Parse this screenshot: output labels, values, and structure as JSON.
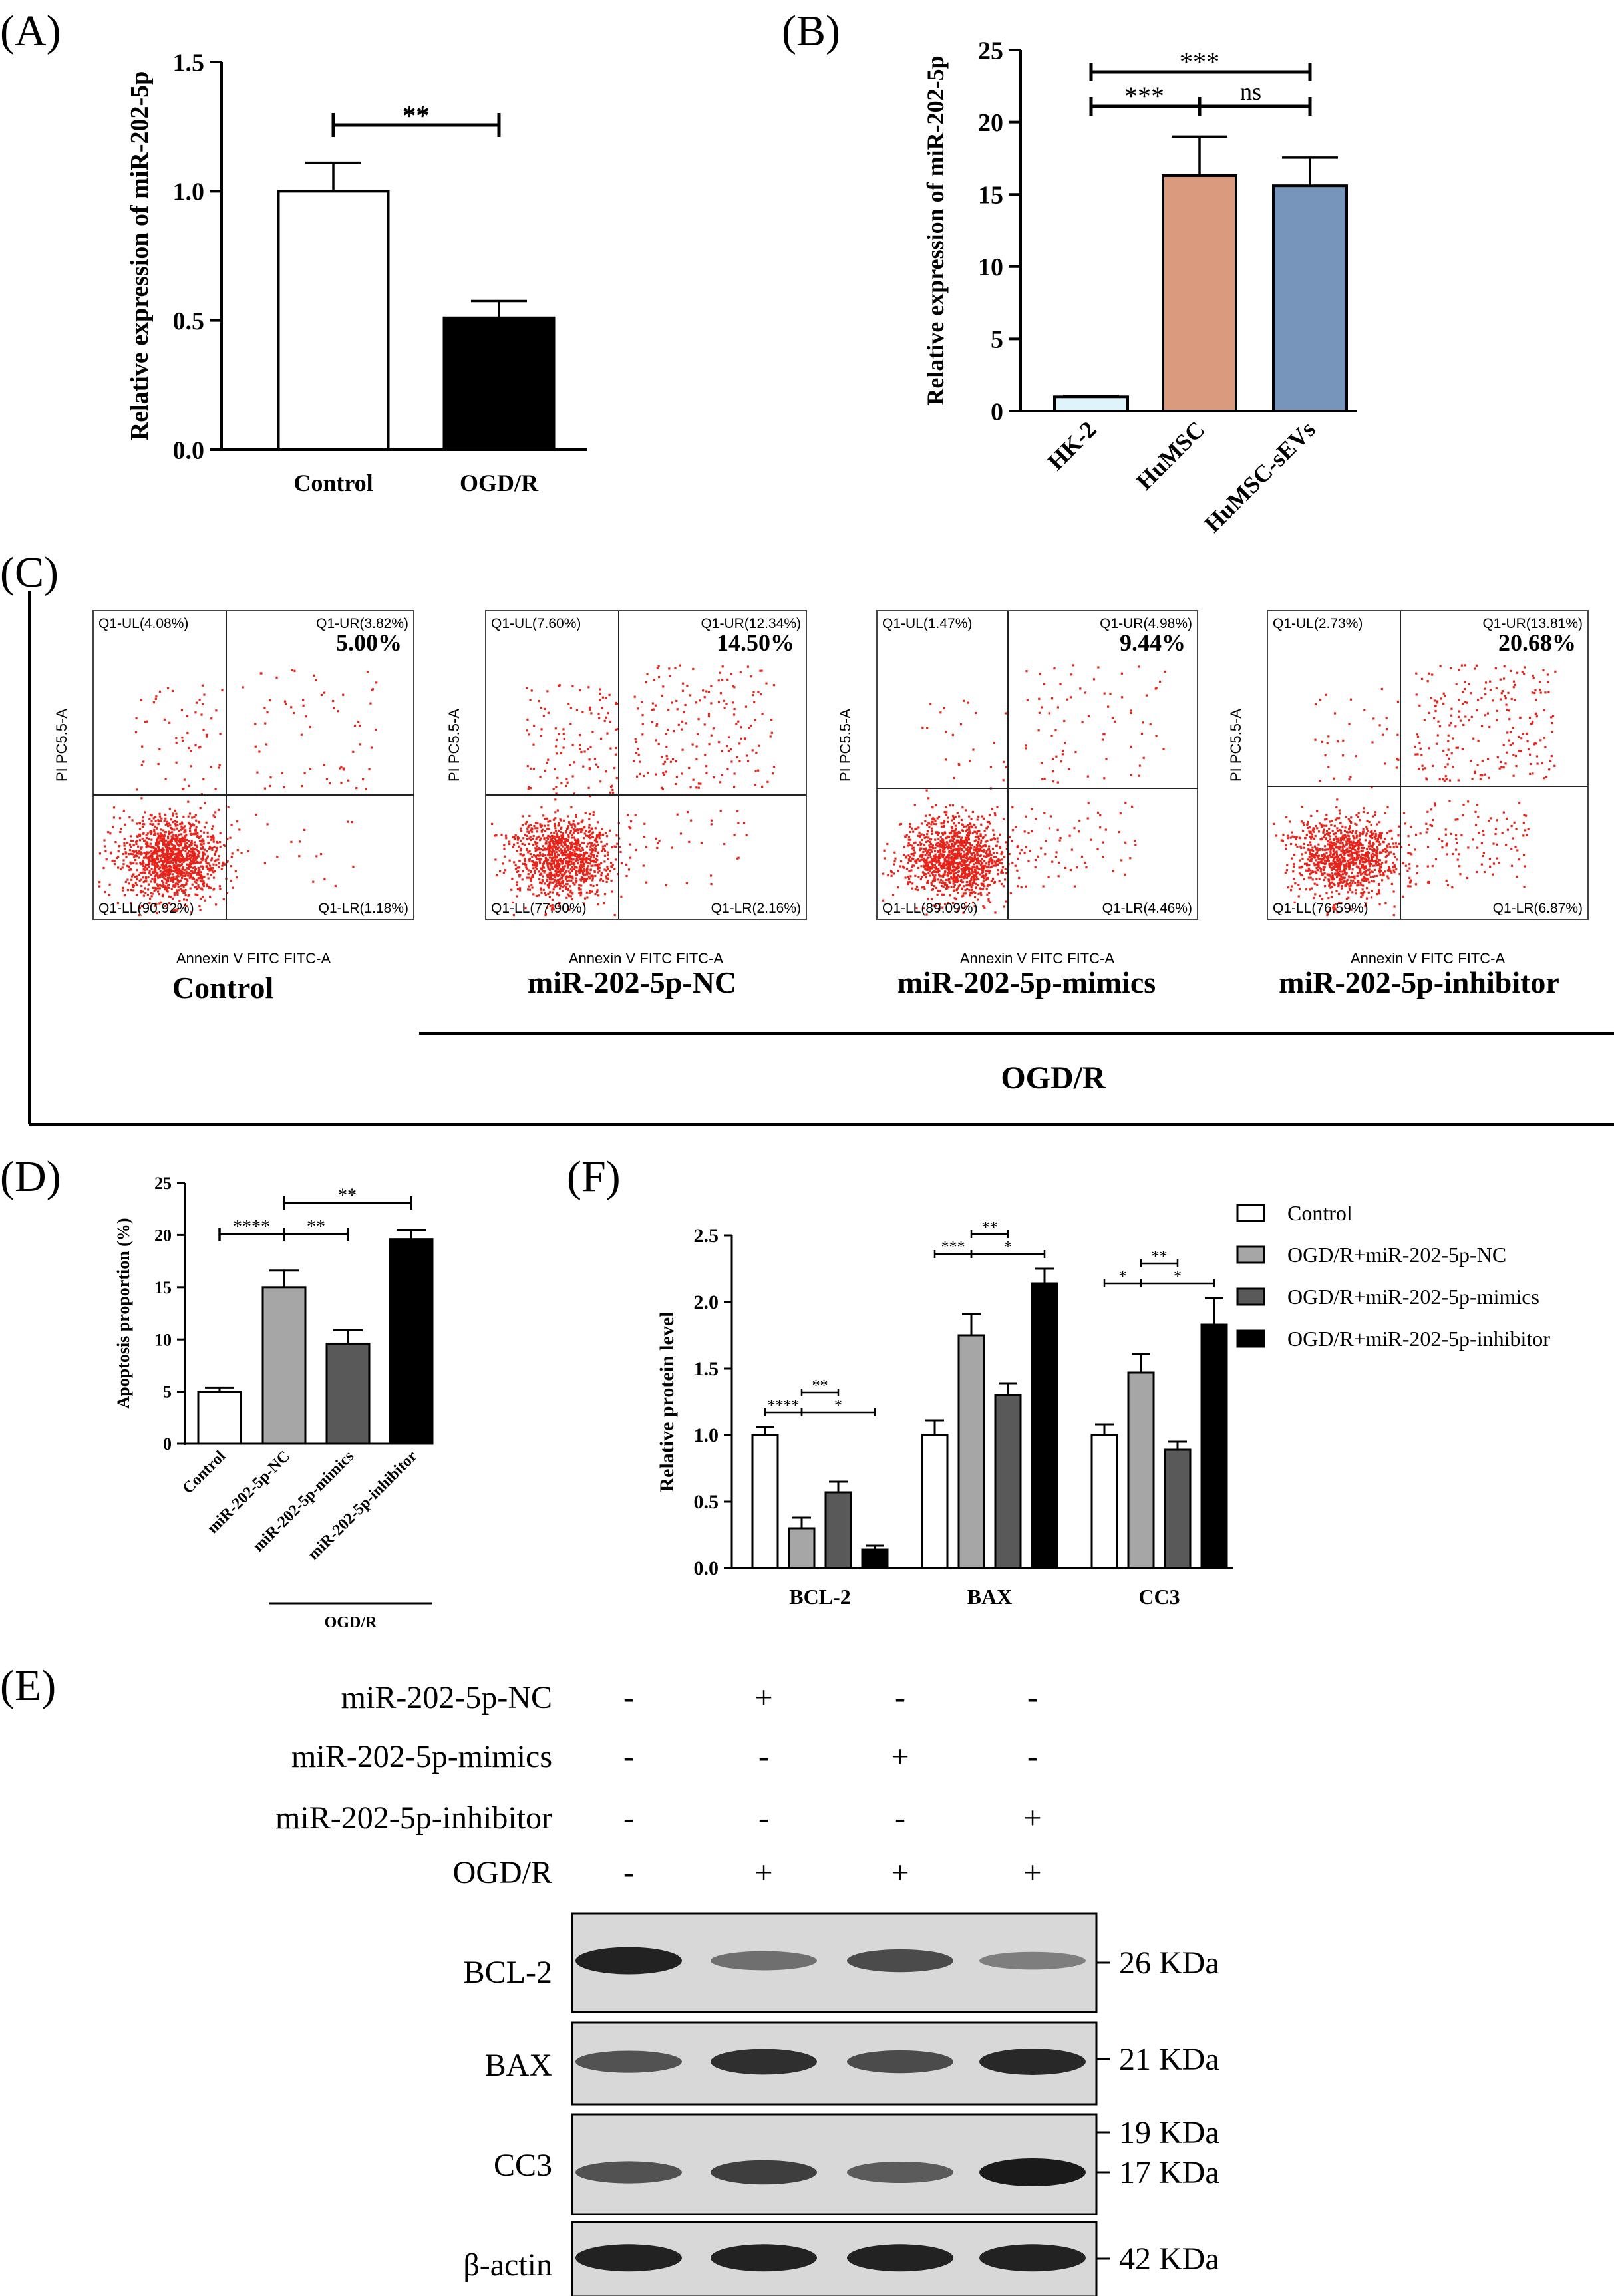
{
  "colors": {
    "white": "#ffffff",
    "black": "#000000",
    "hk2": "#dff4fa",
    "humsc": "#d99a7e",
    "humsc_sevs": "#7794ba",
    "gray_light": "#a6a6a6",
    "gray_dark": "#595959",
    "dots": "#e8231a",
    "band": "#1a1a1a",
    "blot_bg": "#d8d8d8"
  },
  "panel_labels": {
    "A": "(A)",
    "B": "(B)",
    "C": "(C)",
    "D": "(D)",
    "E": "(E)",
    "F": "(F)"
  },
  "chart_data": [
    {
      "id": "A",
      "type": "bar",
      "ylabel": "Relative expression  of  miR-202-5p",
      "categories": [
        "Control",
        "OGD/R"
      ],
      "values": [
        1.0,
        0.51
      ],
      "errors": [
        0.11,
        0.065
      ],
      "ylim": [
        0,
        1.5
      ],
      "yticks": [
        "0.0",
        "0.5",
        "1.0",
        "1.5"
      ],
      "sig": [
        {
          "from": 0,
          "to": 1,
          "label": "**"
        }
      ]
    },
    {
      "id": "B",
      "type": "bar",
      "ylabel": "Relative expression  of  miR-202-5p",
      "categories": [
        "HK-2",
        "HuMSC",
        "HuMSC-sEVs"
      ],
      "values": [
        1.0,
        16.3,
        15.6
      ],
      "errors": [
        0.05,
        2.7,
        1.95
      ],
      "ylim": [
        0,
        25
      ],
      "yticks": [
        "0",
        "5",
        "10",
        "15",
        "20",
        "25"
      ],
      "sig": [
        {
          "from": 0,
          "to": 2,
          "label": "***"
        },
        {
          "from": 0,
          "to": 1,
          "label": "***"
        },
        {
          "from": 1,
          "to": 2,
          "label": "ns"
        }
      ]
    },
    {
      "id": "D",
      "type": "bar",
      "ylabel": "Apoptosis proportion (%)",
      "categories": [
        "Control",
        "miR-202-5p-NC",
        "miR-202-5p-mimics",
        "miR-202-5p-inhibitor"
      ],
      "values": [
        5.0,
        15.0,
        9.6,
        19.6
      ],
      "errors": [
        0.4,
        1.6,
        1.3,
        0.9
      ],
      "ylim": [
        0,
        25
      ],
      "yticks": [
        "0",
        "5",
        "10",
        "15",
        "20",
        "25"
      ],
      "group_label": "OGD/R",
      "sig": [
        {
          "from": 1,
          "to": 3,
          "label": "**"
        },
        {
          "from": 0,
          "to": 1,
          "label": "****"
        },
        {
          "from": 1,
          "to": 2,
          "label": "**"
        }
      ]
    },
    {
      "id": "F",
      "type": "bar",
      "ylabel": "Relative protein level",
      "categories": [
        "BCL-2",
        "BAX",
        "CC3"
      ],
      "ylim": [
        0,
        2.5
      ],
      "yticks": [
        "0.0",
        "0.5",
        "1.0",
        "1.5",
        "2.0",
        "2.5"
      ],
      "series": [
        {
          "name": "Control",
          "values": [
            1.0,
            1.0,
            1.0
          ],
          "errors": [
            0.06,
            0.11,
            0.08
          ]
        },
        {
          "name": "OGD/R+miR-202-5p-NC",
          "values": [
            0.3,
            1.75,
            1.47
          ],
          "errors": [
            0.08,
            0.16,
            0.14
          ]
        },
        {
          "name": "OGD/R+miR-202-5p-mimics",
          "values": [
            0.57,
            1.3,
            0.89
          ],
          "errors": [
            0.08,
            0.09,
            0.06
          ]
        },
        {
          "name": "OGD/R+miR-202-5p-inhibitor",
          "values": [
            0.14,
            2.14,
            1.83
          ],
          "errors": [
            0.03,
            0.11,
            0.2
          ]
        }
      ],
      "sig": [
        {
          "cat": 0,
          "from": 1,
          "to": 2,
          "label": "**",
          "tier": 2
        },
        {
          "cat": 0,
          "from": 0,
          "to": 1,
          "label": "****",
          "tier": 1
        },
        {
          "cat": 0,
          "from": 1,
          "to": 3,
          "label": "*",
          "tier": 1
        },
        {
          "cat": 1,
          "from": 1,
          "to": 2,
          "label": "**",
          "tier": 2
        },
        {
          "cat": 1,
          "from": 0,
          "to": 1,
          "label": "***",
          "tier": 1
        },
        {
          "cat": 1,
          "from": 1,
          "to": 3,
          "label": "*",
          "tier": 1
        },
        {
          "cat": 2,
          "from": 1,
          "to": 2,
          "label": "**",
          "tier": 2
        },
        {
          "cat": 2,
          "from": 0,
          "to": 1,
          "label": "*",
          "tier": 1
        },
        {
          "cat": 2,
          "from": 1,
          "to": 3,
          "label": "*",
          "tier": 1
        }
      ]
    }
  ],
  "flow_cytometry": {
    "y_axis": "PI PC5.5-A",
    "x_axis": "Annexin V FITC FITC-A",
    "group_label": "OGD/R",
    "plots": [
      {
        "title": "Control",
        "ul": "Q1-UL(4.08%)",
        "ur": "Q1-UR(3.82%)",
        "ll": "Q1-LL(90.92%)",
        "lr": "Q1-LR(1.18%)",
        "total": "5.00%",
        "frac_ur": 0.0382,
        "frac_lr": 0.0118,
        "frac_ul": 0.0408
      },
      {
        "title": "miR-202-5p-NC",
        "ul": "Q1-UL(7.60%)",
        "ur": "Q1-UR(12.34%)",
        "ll": "Q1-LL(77.90%)",
        "lr": "Q1-LR(2.16%)",
        "total": "14.50%",
        "frac_ur": 0.1234,
        "frac_lr": 0.0216,
        "frac_ul": 0.076
      },
      {
        "title": "miR-202-5p-mimics",
        "ul": "Q1-UL(1.47%)",
        "ur": "Q1-UR(4.98%)",
        "ll": "Q1-LL(89.09%)",
        "lr": "Q1-LR(4.46%)",
        "total": "9.44%",
        "frac_ur": 0.0498,
        "frac_lr": 0.0446,
        "frac_ul": 0.0147
      },
      {
        "title": "miR-202-5p-inhibitor",
        "ul": "Q1-UL(2.73%)",
        "ur": "Q1-UR(13.81%)",
        "ll": "Q1-LL(76.59%)",
        "lr": "Q1-LR(6.87%)",
        "total": "20.68%",
        "frac_ur": 0.1381,
        "frac_lr": 0.0687,
        "frac_ul": 0.0273
      }
    ]
  },
  "western_blot": {
    "conditions": [
      {
        "label": "miR-202-5p-NC",
        "marks": [
          "-",
          "+",
          "-",
          "-"
        ]
      },
      {
        "label": "miR-202-5p-mimics",
        "marks": [
          "-",
          "-",
          "+",
          "-"
        ]
      },
      {
        "label": "miR-202-5p-inhibitor",
        "marks": [
          "-",
          "-",
          "-",
          "+"
        ]
      },
      {
        "label": "OGD/R",
        "marks": [
          "-",
          "+",
          "+",
          "+"
        ]
      }
    ],
    "blots": [
      {
        "protein": "BCL-2",
        "markers": [
          "26 KDa"
        ],
        "intensities": [
          0.95,
          0.4,
          0.65,
          0.3
        ]
      },
      {
        "protein": "BAX",
        "markers": [
          "21 KDa"
        ],
        "intensities": [
          0.6,
          0.85,
          0.65,
          0.9
        ]
      },
      {
        "protein": "CC3",
        "markers": [
          "19 KDa",
          "17 KDa"
        ],
        "intensities": [
          0.6,
          0.75,
          0.55,
          1.0
        ]
      },
      {
        "protein": "β-actin",
        "markers": [
          "42 KDa"
        ],
        "intensities": [
          0.95,
          0.95,
          0.95,
          0.95
        ]
      }
    ]
  }
}
